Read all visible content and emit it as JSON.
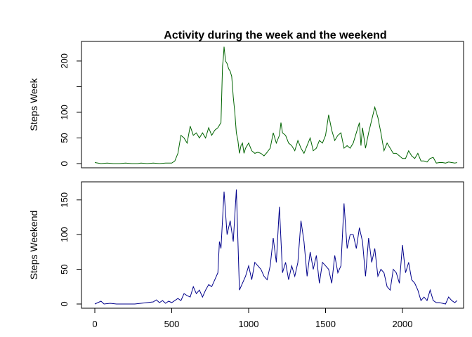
{
  "title": "Activity during the week and the weekend",
  "colors": {
    "week": "#006400",
    "weekend": "#00008b"
  },
  "chart_data": [
    {
      "type": "line",
      "panel": "top",
      "title": "Activity during the week and the weekend",
      "xlabel": "",
      "ylabel": "Steps Week",
      "xlim": [
        0,
        2355
      ],
      "ylim": [
        0,
        230
      ],
      "yticks": [
        0,
        50,
        100,
        150,
        200
      ],
      "ytick_labels": [
        "0",
        "50",
        "100",
        "",
        "200"
      ],
      "xticks_shown": false,
      "series": [
        {
          "color": "#006400",
          "x": [
            0,
            40,
            80,
            120,
            160,
            200,
            240,
            280,
            300,
            340,
            380,
            420,
            460,
            500,
            520,
            540,
            560,
            580,
            600,
            620,
            640,
            660,
            680,
            700,
            720,
            740,
            760,
            780,
            800,
            820,
            830,
            835,
            840,
            850,
            860,
            870,
            880,
            890,
            900,
            910,
            920,
            930,
            940,
            950,
            960,
            970,
            980,
            1000,
            1020,
            1040,
            1060,
            1080,
            1100,
            1120,
            1140,
            1160,
            1180,
            1200,
            1210,
            1220,
            1240,
            1260,
            1280,
            1300,
            1320,
            1340,
            1360,
            1380,
            1400,
            1420,
            1440,
            1460,
            1480,
            1500,
            1520,
            1540,
            1560,
            1580,
            1600,
            1620,
            1640,
            1660,
            1680,
            1700,
            1720,
            1730,
            1740,
            1760,
            1780,
            1800,
            1820,
            1840,
            1850,
            1860,
            1880,
            1900,
            1920,
            1940,
            1960,
            1980,
            2000,
            2020,
            2040,
            2060,
            2080,
            2100,
            2120,
            2140,
            2160,
            2180,
            2200,
            2220,
            2240,
            2260,
            2280,
            2300,
            2320,
            2340,
            2355
          ],
          "values": [
            2,
            0,
            1,
            0,
            0,
            1,
            0,
            0,
            1,
            0,
            1,
            0,
            1,
            1,
            5,
            20,
            55,
            50,
            40,
            73,
            55,
            60,
            50,
            60,
            50,
            70,
            55,
            65,
            70,
            80,
            190,
            205,
            228,
            200,
            195,
            185,
            180,
            170,
            130,
            100,
            60,
            45,
            20,
            35,
            40,
            20,
            30,
            40,
            25,
            20,
            22,
            20,
            15,
            22,
            30,
            60,
            40,
            55,
            80,
            60,
            55,
            40,
            35,
            25,
            45,
            30,
            20,
            35,
            50,
            25,
            30,
            45,
            40,
            55,
            95,
            65,
            45,
            55,
            60,
            30,
            35,
            30,
            40,
            60,
            80,
            35,
            70,
            30,
            60,
            85,
            110,
            90,
            75,
            60,
            25,
            40,
            30,
            20,
            20,
            15,
            10,
            10,
            25,
            15,
            10,
            20,
            5,
            5,
            3,
            10,
            12,
            1,
            2,
            2,
            1,
            3,
            2,
            1,
            2
          ]
        }
      ]
    },
    {
      "type": "line",
      "panel": "bottom",
      "title": "",
      "xlabel": "",
      "ylabel": "Steps Weekend",
      "xlim": [
        0,
        2355
      ],
      "ylim": [
        0,
        170
      ],
      "yticks": [
        0,
        50,
        100,
        150
      ],
      "ytick_labels": [
        "0",
        "50",
        "100",
        "150"
      ],
      "xticks": [
        0,
        500,
        1000,
        1500,
        2000
      ],
      "xtick_labels": [
        "0",
        "500",
        "1000",
        "1500",
        "2000"
      ],
      "series": [
        {
          "color": "#00008b",
          "x": [
            0,
            40,
            60,
            100,
            140,
            180,
            220,
            260,
            300,
            340,
            380,
            400,
            420,
            440,
            460,
            480,
            500,
            540,
            560,
            580,
            600,
            620,
            640,
            660,
            680,
            700,
            720,
            740,
            760,
            780,
            800,
            810,
            820,
            840,
            860,
            880,
            900,
            920,
            940,
            960,
            980,
            1000,
            1020,
            1040,
            1060,
            1080,
            1100,
            1120,
            1140,
            1160,
            1180,
            1200,
            1220,
            1240,
            1260,
            1280,
            1300,
            1320,
            1340,
            1360,
            1380,
            1400,
            1420,
            1440,
            1460,
            1480,
            1500,
            1520,
            1540,
            1560,
            1580,
            1600,
            1620,
            1640,
            1660,
            1680,
            1700,
            1720,
            1740,
            1760,
            1780,
            1800,
            1820,
            1840,
            1860,
            1880,
            1900,
            1920,
            1940,
            1960,
            1980,
            2000,
            2020,
            2040,
            2060,
            2080,
            2100,
            2120,
            2140,
            2160,
            2180,
            2200,
            2220,
            2240,
            2260,
            2280,
            2300,
            2320,
            2340,
            2355
          ],
          "values": [
            0,
            4,
            0,
            1,
            0,
            0,
            0,
            0,
            1,
            2,
            3,
            6,
            2,
            5,
            1,
            4,
            2,
            8,
            5,
            15,
            12,
            10,
            25,
            15,
            20,
            10,
            20,
            28,
            25,
            35,
            45,
            90,
            80,
            162,
            100,
            120,
            90,
            165,
            20,
            30,
            40,
            55,
            35,
            60,
            55,
            50,
            40,
            35,
            55,
            95,
            60,
            140,
            45,
            60,
            35,
            55,
            40,
            60,
            120,
            90,
            40,
            75,
            50,
            70,
            30,
            60,
            55,
            50,
            30,
            70,
            45,
            55,
            145,
            80,
            100,
            100,
            80,
            110,
            90,
            40,
            95,
            60,
            80,
            40,
            50,
            45,
            25,
            20,
            50,
            45,
            30,
            85,
            45,
            60,
            35,
            30,
            20,
            5,
            10,
            5,
            20,
            5,
            2,
            2,
            1,
            0,
            10,
            5,
            2,
            5
          ]
        }
      ]
    }
  ]
}
